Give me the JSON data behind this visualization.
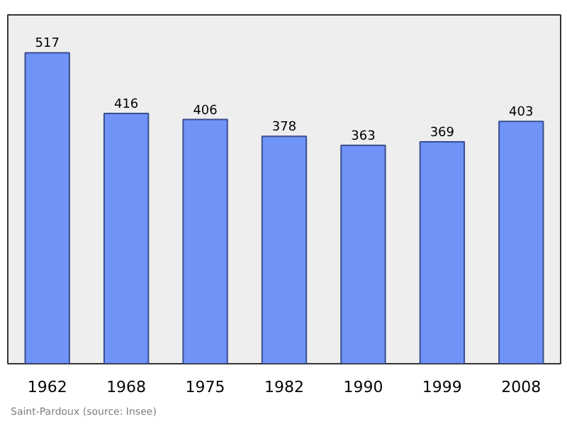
{
  "chart_data": {
    "type": "bar",
    "categories": [
      "1962",
      "1968",
      "1975",
      "1982",
      "1990",
      "1999",
      "2008"
    ],
    "values": [
      517,
      416,
      406,
      378,
      363,
      369,
      403
    ],
    "color": "#6f93f7",
    "ylim": [
      0,
      580
    ],
    "data_labels": true,
    "grid": false,
    "annotations": [
      "Saint-Pardoux",
      "(source: Insee)"
    ]
  }
}
